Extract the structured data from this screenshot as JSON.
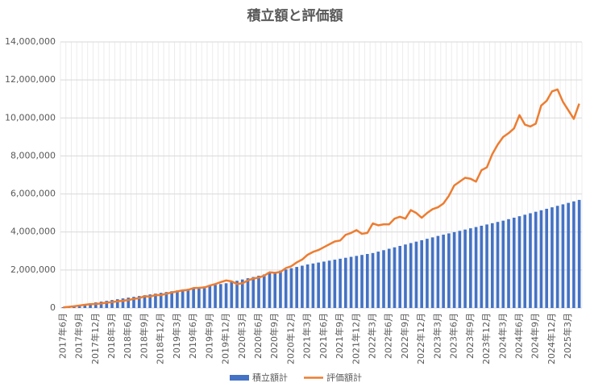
{
  "chart_data": {
    "type": "bar-line",
    "title": "積立額と評価額",
    "categories": [
      "2017年6月",
      null,
      null,
      "2017年9月",
      null,
      null,
      "2017年12月",
      null,
      null,
      "2018年3月",
      null,
      null,
      "2018年6月",
      null,
      null,
      "2018年9月",
      null,
      null,
      "2018年12月",
      null,
      null,
      "2019年3月",
      null,
      null,
      "2019年6月",
      null,
      null,
      "2019年9月",
      null,
      null,
      "2019年12月",
      null,
      null,
      "2020年3月",
      null,
      null,
      "2020年6月",
      null,
      null,
      "2020年9月",
      null,
      null,
      "2020年12月",
      null,
      null,
      "2021年3月",
      null,
      null,
      "2021年6月",
      null,
      null,
      "2021年9月",
      null,
      null,
      "2021年12月",
      null,
      null,
      "2022年3月",
      null,
      null,
      "2022年6月",
      null,
      null,
      "2022年9月",
      null,
      null,
      "2022年12月",
      null,
      null,
      "2023年3月",
      null,
      null,
      "2023年6月",
      null,
      null,
      "2023年9月",
      null,
      null,
      "2023年12月",
      null,
      null,
      "2024年3月",
      null,
      null,
      "2024年6月",
      null,
      null,
      "2024年9月",
      null,
      null,
      "2024年12月",
      null,
      null,
      "2025年3月",
      null,
      null
    ],
    "series": [
      {
        "name": "積立額計",
        "color": "#4472c4",
        "kind": "bar",
        "values": [
          42000,
          84000,
          126000,
          168000,
          210000,
          252000,
          294000,
          336000,
          378000,
          420000,
          462000,
          504000,
          546000,
          588000,
          630000,
          672000,
          714000,
          756000,
          798000,
          840000,
          882000,
          924000,
          966000,
          1008000,
          1050000,
          1092000,
          1134000,
          1176000,
          1218000,
          1260000,
          1302000,
          1368000,
          1434000,
          1500000,
          1566000,
          1632000,
          1698000,
          1764000,
          1830000,
          1896000,
          1962000,
          2028000,
          2094000,
          2160000,
          2226000,
          2292000,
          2342000,
          2392000,
          2442000,
          2492000,
          2542000,
          2592000,
          2642000,
          2692000,
          2742000,
          2792000,
          2842000,
          2892000,
          2967000,
          3042000,
          3117000,
          3192000,
          3267000,
          3342000,
          3417000,
          3492000,
          3567000,
          3642000,
          3717000,
          3792000,
          3859000,
          3926000,
          3993000,
          4060000,
          4127000,
          4194000,
          4261000,
          4328000,
          4395000,
          4462000,
          4529000,
          4596000,
          4674000,
          4752000,
          4830000,
          4908000,
          4986000,
          5064000,
          5142000,
          5220000,
          5298000,
          5376000,
          5454000,
          5532000,
          5610000,
          5688000
        ]
      },
      {
        "name": "評価額計",
        "color": "#ed7d31",
        "kind": "line",
        "values": [
          30000,
          60000,
          90000,
          130000,
          170000,
          200000,
          210000,
          240000,
          280000,
          310000,
          350000,
          380000,
          420000,
          480000,
          520000,
          620000,
          600000,
          680000,
          680000,
          750000,
          820000,
          870000,
          930000,
          950000,
          1050000,
          1060000,
          1080000,
          1180000,
          1260000,
          1360000,
          1450000,
          1400000,
          1260000,
          1300000,
          1450000,
          1550000,
          1600000,
          1700000,
          1880000,
          1850000,
          1900000,
          2100000,
          2200000,
          2400000,
          2550000,
          2800000,
          2950000,
          3050000,
          3200000,
          3350000,
          3500000,
          3550000,
          3850000,
          3950000,
          4100000,
          3900000,
          3950000,
          4450000,
          4350000,
          4400000,
          4400000,
          4700000,
          4800000,
          4700000,
          5150000,
          5000000,
          4750000,
          5000000,
          5200000,
          5300000,
          5500000,
          5900000,
          6450000,
          6650000,
          6850000,
          6800000,
          6650000,
          7250000,
          7400000,
          8100000,
          8600000,
          9000000,
          9200000,
          9450000,
          10150000,
          9650000,
          9550000,
          9700000,
          10650000,
          10900000,
          11400000,
          11500000,
          10850000,
          10400000,
          9950000,
          10750000
        ]
      }
    ],
    "ylim": [
      0,
      14000000
    ],
    "yticks": [
      0,
      {
        "value": 2000000,
        "label": "2,000,000"
      },
      {
        "value": 4000000,
        "label": "4,000,000"
      },
      {
        "value": 6000000,
        "label": "6,000,000"
      },
      {
        "value": 8000000,
        "label": "8,000,000"
      },
      {
        "value": 10000000,
        "label": "10,000,000"
      },
      {
        "value": 12000000,
        "label": "12,000,000"
      },
      {
        "value": 14000000,
        "label": "14,000,000"
      }
    ],
    "grid": true,
    "legend": "bottom"
  }
}
